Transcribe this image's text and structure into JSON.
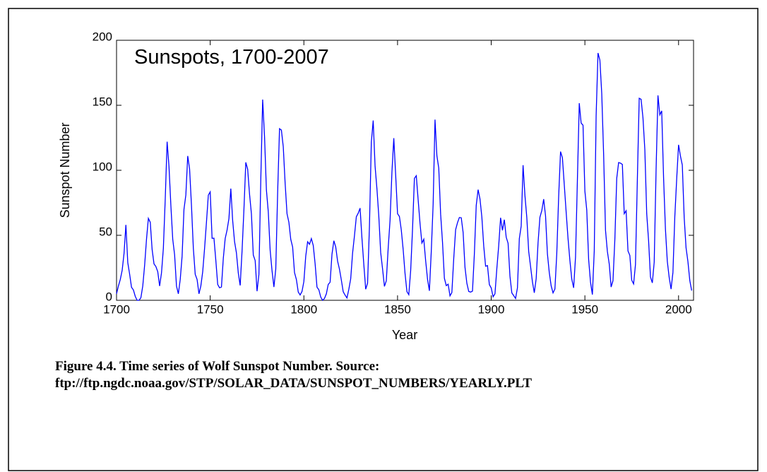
{
  "chart_data": {
    "type": "line",
    "title": "Sunspots, 1700-2007",
    "xlabel": "Year",
    "ylabel": "Sunspot Number",
    "caption": [
      "Figure 4.4.  Time series of Wolf Sunspot Number.  Source:",
      "ftp://ftp.ngdc.noaa.gov/STP/SOLAR_DATA/SUNSPOT_NUMBERS/YEARLY.PLT"
    ],
    "xlim": [
      1700,
      2008
    ],
    "xticks": [
      1700,
      1750,
      1800,
      1850,
      1900,
      1950,
      2000
    ],
    "ylim": [
      0,
      200
    ],
    "yticks": [
      0,
      50,
      100,
      150,
      200
    ],
    "x": [
      1700,
      1701,
      1702,
      1703,
      1704,
      1705,
      1706,
      1707,
      1708,
      1709,
      1710,
      1711,
      1712,
      1713,
      1714,
      1715,
      1716,
      1717,
      1718,
      1719,
      1720,
      1721,
      1722,
      1723,
      1724,
      1725,
      1726,
      1727,
      1728,
      1729,
      1730,
      1731,
      1732,
      1733,
      1734,
      1735,
      1736,
      1737,
      1738,
      1739,
      1740,
      1741,
      1742,
      1743,
      1744,
      1745,
      1746,
      1747,
      1748,
      1749,
      1750,
      1751,
      1752,
      1753,
      1754,
      1755,
      1756,
      1757,
      1758,
      1759,
      1760,
      1761,
      1762,
      1763,
      1764,
      1765,
      1766,
      1767,
      1768,
      1769,
      1770,
      1771,
      1772,
      1773,
      1774,
      1775,
      1776,
      1777,
      1778,
      1779,
      1780,
      1781,
      1782,
      1783,
      1784,
      1785,
      1786,
      1787,
      1788,
      1789,
      1790,
      1791,
      1792,
      1793,
      1794,
      1795,
      1796,
      1797,
      1798,
      1799,
      1800,
      1801,
      1802,
      1803,
      1804,
      1805,
      1806,
      1807,
      1808,
      1809,
      1810,
      1811,
      1812,
      1813,
      1814,
      1815,
      1816,
      1817,
      1818,
      1819,
      1820,
      1821,
      1822,
      1823,
      1824,
      1825,
      1826,
      1827,
      1828,
      1829,
      1830,
      1831,
      1832,
      1833,
      1834,
      1835,
      1836,
      1837,
      1838,
      1839,
      1840,
      1841,
      1842,
      1843,
      1844,
      1845,
      1846,
      1847,
      1848,
      1849,
      1850,
      1851,
      1852,
      1853,
      1854,
      1855,
      1856,
      1857,
      1858,
      1859,
      1860,
      1861,
      1862,
      1863,
      1864,
      1865,
      1866,
      1867,
      1868,
      1869,
      1870,
      1871,
      1872,
      1873,
      1874,
      1875,
      1876,
      1877,
      1878,
      1879,
      1880,
      1881,
      1882,
      1883,
      1884,
      1885,
      1886,
      1887,
      1888,
      1889,
      1890,
      1891,
      1892,
      1893,
      1894,
      1895,
      1896,
      1897,
      1898,
      1899,
      1900,
      1901,
      1902,
      1903,
      1904,
      1905,
      1906,
      1907,
      1908,
      1909,
      1910,
      1911,
      1912,
      1913,
      1914,
      1915,
      1916,
      1917,
      1918,
      1919,
      1920,
      1921,
      1922,
      1923,
      1924,
      1925,
      1926,
      1927,
      1928,
      1929,
      1930,
      1931,
      1932,
      1933,
      1934,
      1935,
      1936,
      1937,
      1938,
      1939,
      1940,
      1941,
      1942,
      1943,
      1944,
      1945,
      1946,
      1947,
      1948,
      1949,
      1950,
      1951,
      1952,
      1953,
      1954,
      1955,
      1956,
      1957,
      1958,
      1959,
      1960,
      1961,
      1962,
      1963,
      1964,
      1965,
      1966,
      1967,
      1968,
      1969,
      1970,
      1971,
      1972,
      1973,
      1974,
      1975,
      1976,
      1977,
      1978,
      1979,
      1980,
      1981,
      1982,
      1983,
      1984,
      1985,
      1986,
      1987,
      1988,
      1989,
      1990,
      1991,
      1992,
      1993,
      1994,
      1995,
      1996,
      1997,
      1998,
      1999,
      2000,
      2001,
      2002,
      2003,
      2004,
      2005,
      2006,
      2007
    ],
    "series": [
      {
        "color": "#0000ff",
        "values": [
          5,
          11,
          16,
          23,
          36,
          58,
          29,
          20,
          10,
          8,
          3,
          0,
          0,
          2,
          11,
          27,
          47,
          63,
          60,
          39,
          28,
          26,
          22,
          11,
          21,
          40,
          78,
          122,
          103,
          73,
          47,
          35,
          11,
          5,
          16,
          34,
          70,
          81,
          111,
          101,
          73,
          40,
          20,
          16,
          5,
          11,
          22,
          40,
          60,
          80.9,
          83.4,
          47.7,
          47.8,
          30.7,
          12.2,
          9.6,
          10.2,
          32.4,
          47.6,
          54,
          62.9,
          85.9,
          61.2,
          45.1,
          36.4,
          20.9,
          11.4,
          37.8,
          69.8,
          106.1,
          100.8,
          81.6,
          66.5,
          34.8,
          30.6,
          7,
          19.8,
          92.5,
          154.4,
          125.9,
          84.8,
          68.1,
          38.5,
          22.8,
          10.2,
          24.1,
          82.9,
          132,
          130.9,
          118.1,
          89.9,
          66.6,
          60,
          46.9,
          41,
          21.3,
          16,
          6.4,
          4.1,
          6.8,
          14.5,
          34,
          45,
          43.1,
          47.5,
          42.2,
          28.1,
          10.1,
          8.1,
          2.5,
          0,
          1.4,
          5,
          12.2,
          13.9,
          35.4,
          45.8,
          41.1,
          30.1,
          23.9,
          15.6,
          6.6,
          4,
          1.8,
          8.5,
          16.6,
          36.3,
          49.6,
          64.2,
          67,
          70.9,
          47.8,
          27.5,
          8.5,
          13.2,
          56.9,
          121.5,
          138.3,
          103.2,
          85.7,
          64.6,
          36.7,
          24.2,
          10.7,
          15,
          40.1,
          61.5,
          98.5,
          124.7,
          96.3,
          66.6,
          64.5,
          54.1,
          39,
          20.6,
          6.7,
          4.3,
          22.7,
          54.8,
          93.8,
          95.8,
          77.2,
          59.1,
          44,
          47,
          30.5,
          16.3,
          7.3,
          37.6,
          74,
          139,
          111.2,
          101.6,
          66.2,
          44.7,
          17,
          11.3,
          12.4,
          3.4,
          6,
          32.3,
          54.3,
          59.7,
          63.7,
          63.5,
          52.2,
          25.4,
          13.1,
          6.8,
          6.3,
          7.1,
          35.6,
          73,
          85.1,
          78,
          64,
          41.8,
          26.2,
          26.7,
          12.1,
          9.5,
          2.7,
          5,
          24.4,
          42,
          63.5,
          53.8,
          62,
          48.5,
          43.9,
          18.6,
          5.7,
          3.6,
          1.4,
          9.6,
          47.4,
          57.1,
          103.9,
          80.6,
          63.6,
          37.6,
          26.1,
          14.2,
          5.8,
          16.7,
          44.3,
          63.9,
          69,
          77.8,
          64.9,
          35.7,
          21.2,
          11.1,
          5.7,
          8.7,
          36.1,
          79.7,
          114.4,
          109.6,
          88.8,
          67.8,
          47.5,
          30.6,
          16.3,
          9.6,
          33.2,
          92.6,
          151.6,
          136.3,
          134.7,
          83.9,
          69.4,
          31.5,
          13.9,
          4.4,
          38,
          141.7,
          190.2,
          184.8,
          159,
          112.3,
          53.9,
          37.6,
          27.9,
          10.2,
          15.1,
          47,
          93.8,
          105.9,
          105.5,
          104.5,
          66.6,
          68.9,
          38,
          34.5,
          15.5,
          12.6,
          27.5,
          92.5,
          155.4,
          154.6,
          140.4,
          115.9,
          66.6,
          45.9,
          17.9,
          13.4,
          29.4,
          100.2,
          157.6,
          142.6,
          145.7,
          94.3,
          54.6,
          29.9,
          17.5,
          8.6,
          21.5,
          64.3,
          93.3,
          119.6,
          111,
          104,
          63.7,
          40.4,
          29.8,
          15.2,
          7.5
        ]
      }
    ]
  }
}
